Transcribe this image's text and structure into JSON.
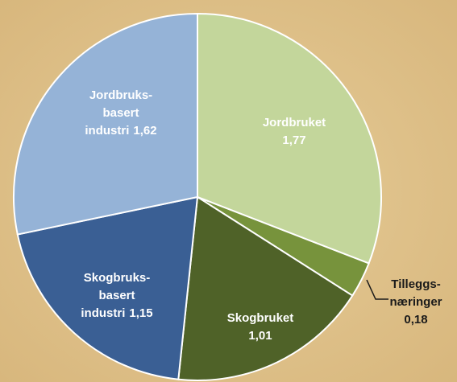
{
  "chart_data": {
    "type": "pie",
    "categories": [
      [
        "Jordbruket"
      ],
      [
        "Tilleggs-",
        "næringer"
      ],
      [
        "Skogbruket"
      ],
      [
        "Skogbruks-",
        "basert",
        "industri"
      ],
      [
        "Jordbruks-",
        "basert",
        "industri"
      ]
    ],
    "values": [
      1.77,
      0.18,
      1.01,
      1.15,
      1.62
    ],
    "value_labels": [
      "1,77",
      "0,18",
      "1,01",
      "1,15",
      "1,62"
    ],
    "colors": [
      "#c3d69b",
      "#77933c",
      "#4f6228",
      "#3a5f94",
      "#95b3d7"
    ]
  }
}
